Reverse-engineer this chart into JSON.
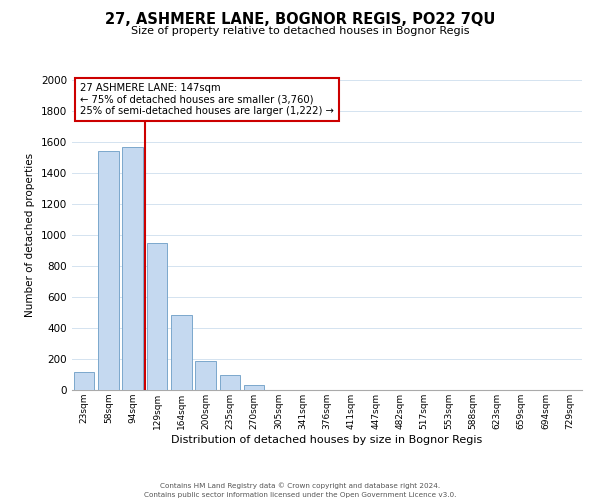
{
  "title": "27, ASHMERE LANE, BOGNOR REGIS, PO22 7QU",
  "subtitle": "Size of property relative to detached houses in Bognor Regis",
  "xlabel": "Distribution of detached houses by size in Bognor Regis",
  "ylabel": "Number of detached properties",
  "bar_labels": [
    "23sqm",
    "58sqm",
    "94sqm",
    "129sqm",
    "164sqm",
    "200sqm",
    "235sqm",
    "270sqm",
    "305sqm",
    "341sqm",
    "376sqm",
    "411sqm",
    "447sqm",
    "482sqm",
    "517sqm",
    "553sqm",
    "588sqm",
    "623sqm",
    "659sqm",
    "694sqm",
    "729sqm"
  ],
  "bar_values": [
    113,
    1540,
    1565,
    950,
    487,
    188,
    97,
    35,
    0,
    0,
    0,
    0,
    0,
    0,
    0,
    0,
    0,
    0,
    0,
    0,
    0
  ],
  "bar_color": "#c5d9f0",
  "bar_edge_color": "#7ba7cc",
  "ylim": [
    0,
    2000
  ],
  "yticks": [
    0,
    200,
    400,
    600,
    800,
    1000,
    1200,
    1400,
    1600,
    1800,
    2000
  ],
  "annotation_title": "27 ASHMERE LANE: 147sqm",
  "annotation_line1": "← 75% of detached houses are smaller (3,760)",
  "annotation_line2": "25% of semi-detached houses are larger (1,222) →",
  "vline_x": 2.5,
  "vline_color": "#cc0000",
  "footer_line1": "Contains HM Land Registry data © Crown copyright and database right 2024.",
  "footer_line2": "Contains public sector information licensed under the Open Government Licence v3.0.",
  "background_color": "#ffffff",
  "grid_color": "#d4e3f0"
}
